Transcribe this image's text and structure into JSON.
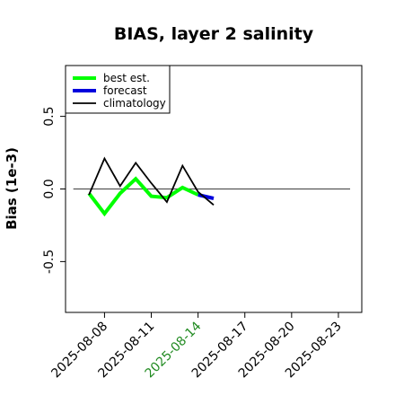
{
  "chart_data": {
    "type": "line",
    "title": "BIAS, layer 2 salinity",
    "xlabel": "",
    "ylabel": "Bias (1e-3)",
    "ylim": [
      -0.85,
      0.85
    ],
    "xlim": [
      "2025-08-05T12:00",
      "2025-08-24T12:00"
    ],
    "yticks": [
      "-0.5",
      "0.0",
      "0.5"
    ],
    "ytick_values": [
      -0.5,
      0.0,
      0.5
    ],
    "xticks": [
      "2025-08-08",
      "2025-08-11",
      "2025-08-14",
      "2025-08-17",
      "2025-08-20",
      "2025-08-23"
    ],
    "highlight_xtick": "2025-08-14",
    "highlight_color": "#228B22",
    "reference_line": 0.0,
    "grid": false,
    "legend_position": "top-left",
    "series": [
      {
        "name": "best est.",
        "color": "#00ff00",
        "style": "thick",
        "x": [
          "2025-08-07",
          "2025-08-08",
          "2025-08-09",
          "2025-08-10",
          "2025-08-11",
          "2025-08-12",
          "2025-08-13",
          "2025-08-14"
        ],
        "y": [
          -0.03,
          -0.17,
          -0.03,
          0.07,
          -0.05,
          -0.06,
          0.01,
          -0.04
        ]
      },
      {
        "name": "forecast",
        "color": "#0000dd",
        "style": "thick",
        "x": [
          "2025-08-14",
          "2025-08-15"
        ],
        "y": [
          -0.04,
          -0.065
        ]
      },
      {
        "name": "climatology",
        "color": "#000000",
        "style": "thin",
        "x": [
          "2025-08-07",
          "2025-08-08",
          "2025-08-09",
          "2025-08-10",
          "2025-08-11",
          "2025-08-12",
          "2025-08-13",
          "2025-08-14",
          "2025-08-15"
        ],
        "y": [
          -0.04,
          0.21,
          0.02,
          0.18,
          0.04,
          -0.09,
          0.16,
          -0.02,
          -0.11
        ]
      }
    ]
  }
}
